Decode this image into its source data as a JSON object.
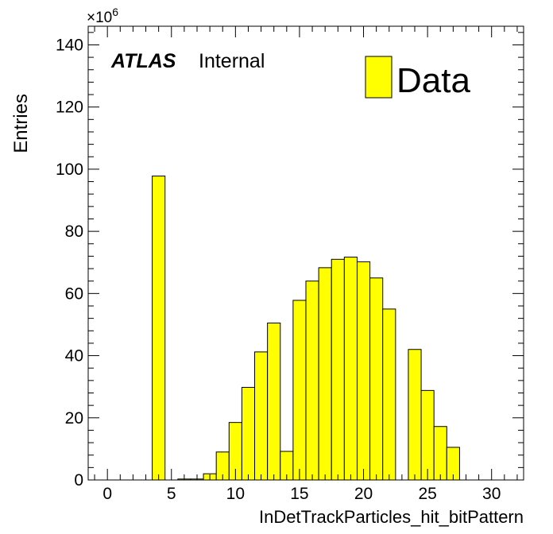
{
  "chart_data": {
    "type": "bar",
    "title": "",
    "xlabel": "InDetTrackParticles_hit_bitPattern",
    "ylabel": "Entries",
    "y_multiplier_label": "×10",
    "y_multiplier_exponent": "6",
    "xlim": [
      -1.5,
      32.5
    ],
    "ylim": [
      0,
      146
    ],
    "x_ticks": [
      0,
      5,
      10,
      15,
      20,
      25,
      30
    ],
    "y_ticks": [
      0,
      20,
      40,
      60,
      80,
      100,
      120,
      140
    ],
    "bin_width": 1,
    "bin_low_edges": [
      3.5,
      5.5,
      6.5,
      7.5,
      8.5,
      9.5,
      10.5,
      11.5,
      12.5,
      13.5,
      14.5,
      15.5,
      16.5,
      17.5,
      18.5,
      19.5,
      20.5,
      21.5,
      23.5,
      24.5,
      25.5,
      26.5
    ],
    "series": [
      {
        "name": "Data",
        "values": [
          97.8,
          0.3,
          0.3,
          2.0,
          9.0,
          18.5,
          29.8,
          41.2,
          50.5,
          9.2,
          57.8,
          64.0,
          68.3,
          71.0,
          71.7,
          70.2,
          65.0,
          55.0,
          42.0,
          28.8,
          17.2,
          10.5
        ],
        "color": "#ffff00",
        "edge_color": "#000000"
      }
    ],
    "legend": {
      "entries": [
        "Data"
      ],
      "position": "top-right"
    },
    "annotations": {
      "experiment": "ATLAS",
      "status": "Internal"
    },
    "grid": false
  }
}
